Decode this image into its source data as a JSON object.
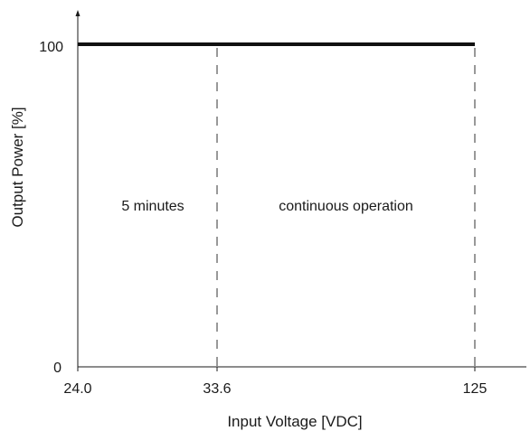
{
  "chart_data": {
    "type": "line",
    "title": "",
    "xlabel": "Input Voltage [VDC]",
    "ylabel": "Output Power [%]",
    "x_ticks": [
      "24.0",
      "33.6",
      "125"
    ],
    "y_ticks": [
      "0",
      "100"
    ],
    "series": [
      {
        "x": [
          24.0,
          125
        ],
        "y": [
          100,
          100
        ]
      }
    ],
    "reference_lines": [
      {
        "x": 33.6,
        "style": "dashed"
      },
      {
        "x": 125,
        "style": "dashed"
      }
    ],
    "regions": [
      {
        "label": "5 minutes",
        "x_range": [
          24.0,
          33.6
        ]
      },
      {
        "label": "continuous operation",
        "x_range": [
          33.6,
          125
        ]
      }
    ],
    "grid": false,
    "line_color": "#111111"
  }
}
